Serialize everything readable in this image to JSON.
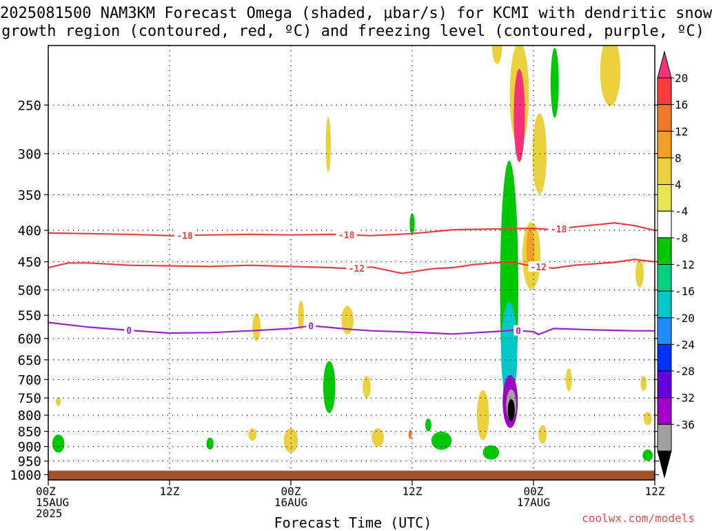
{
  "title_line1": "2025081500 NAM3KM Forecast Omega (shaded, μbar/s) for KCMI with dendritic snow",
  "title_line2": "growth region (contoured, red, ºC) and freezing level (contoured, purple, ºC)",
  "credit": "coolwx.com/models",
  "chart_data": {
    "type": "heatmap",
    "title": "2025081500 NAM3KM Forecast Omega (shaded, μbar/s) for KCMI with dendritic snow growth region (contoured, red, ºC) and freezing level (contoured, purple, ºC)",
    "xlabel": "Forecast Time (UTC)",
    "ylabel": "",
    "x_ticks": [
      {
        "hour": 0,
        "lines": [
          "00Z",
          "15AUG",
          "2025"
        ]
      },
      {
        "hour": 12,
        "lines": [
          "12Z"
        ]
      },
      {
        "hour": 24,
        "lines": [
          "00Z",
          "16AUG"
        ]
      },
      {
        "hour": 36,
        "lines": [
          "12Z"
        ]
      },
      {
        "hour": 48,
        "lines": [
          "00Z",
          "17AUG"
        ]
      },
      {
        "hour": 60,
        "lines": [
          "12Z"
        ]
      }
    ],
    "xlim": [
      0,
      60
    ],
    "y_ticks": [
      250,
      300,
      350,
      400,
      450,
      500,
      550,
      600,
      650,
      700,
      750,
      800,
      850,
      900,
      950,
      1000
    ],
    "ylim_hPa": [
      1020,
      200
    ],
    "y_scale": "log-pressure",
    "grid": true,
    "ground_below_hPa": 985,
    "ground_color": "#a0522d",
    "colorbar": {
      "labels": [
        "20",
        "16",
        "12",
        "8",
        "4",
        "-4",
        "-8",
        "-12",
        "-16",
        "-20",
        "-24",
        "-28",
        "-32",
        "-36"
      ],
      "colors": [
        "#f4317a",
        "#ff3c3c",
        "#f07826",
        "#f0a028",
        "#ebd23c",
        "#e6e650",
        "#ffffff",
        "#00c800",
        "#00d282",
        "#00c8c8",
        "#1e8cff",
        "#0032ff",
        "#6400dc",
        "#a000c8",
        "#a0a0a0",
        "#000000"
      ]
    },
    "contours": [
      {
        "color": "#e83e3e",
        "level": "-18",
        "points": [
          [
            0,
            404
          ],
          [
            4,
            405
          ],
          [
            8,
            406
          ],
          [
            12,
            408
          ],
          [
            16,
            407
          ],
          [
            20,
            406
          ],
          [
            24,
            407
          ],
          [
            28,
            406
          ],
          [
            32,
            408
          ],
          [
            36,
            405
          ],
          [
            38,
            402
          ],
          [
            40,
            399
          ],
          [
            44,
            398
          ],
          [
            48,
            397
          ],
          [
            50,
            399
          ],
          [
            52,
            395
          ],
          [
            56,
            389
          ],
          [
            58,
            393
          ],
          [
            60,
            400
          ]
        ],
        "labels": [
          {
            "x": 13.5,
            "text": "-18"
          },
          {
            "x": 29.5,
            "text": "-18"
          },
          {
            "x": 50.5,
            "text": "-18"
          }
        ]
      },
      {
        "color": "#e83e3e",
        "level": "-12",
        "points": [
          [
            0,
            460
          ],
          [
            2,
            452
          ],
          [
            4,
            452
          ],
          [
            8,
            456
          ],
          [
            12,
            457
          ],
          [
            16,
            458
          ],
          [
            20,
            456
          ],
          [
            24,
            458
          ],
          [
            28,
            460
          ],
          [
            30,
            462
          ],
          [
            32,
            459
          ],
          [
            35,
            470
          ],
          [
            38,
            462
          ],
          [
            40,
            460
          ],
          [
            42,
            455
          ],
          [
            44,
            452
          ],
          [
            46,
            451
          ],
          [
            48,
            458
          ],
          [
            50,
            461
          ],
          [
            52,
            456
          ],
          [
            56,
            451
          ],
          [
            58,
            446
          ],
          [
            60,
            450
          ]
        ],
        "labels": [
          {
            "x": 30.5,
            "text": "-12"
          },
          {
            "x": 48.5,
            "text": "-12"
          }
        ]
      },
      {
        "color": "#9a20c8",
        "level": "0",
        "points": [
          [
            0,
            565
          ],
          [
            4,
            575
          ],
          [
            8,
            582
          ],
          [
            12,
            588
          ],
          [
            16,
            587
          ],
          [
            20,
            583
          ],
          [
            24,
            578
          ],
          [
            26,
            572
          ],
          [
            28,
            576
          ],
          [
            30,
            580
          ],
          [
            32,
            583
          ],
          [
            36,
            586
          ],
          [
            40,
            590
          ],
          [
            44,
            585
          ],
          [
            46,
            582
          ],
          [
            48,
            585
          ],
          [
            48.5,
            591
          ],
          [
            50,
            578
          ],
          [
            54,
            581
          ],
          [
            58,
            583
          ],
          [
            60,
            583
          ]
        ],
        "labels": [
          {
            "x": 8,
            "text": "0"
          },
          {
            "x": 26,
            "text": "0"
          },
          {
            "x": 46.5,
            "text": "0"
          }
        ]
      }
    ],
    "shaded_regions": [
      {
        "hour": 46.6,
        "p": 240,
        "hw": 0.95,
        "hh": 110,
        "color": "#ebd23c"
      },
      {
        "hour": 46.6,
        "p": 260,
        "hw": 0.55,
        "hh": 90,
        "color": "#f4317a"
      },
      {
        "hour": 45.6,
        "p": 500,
        "hw": 0.9,
        "hh": 450,
        "color": "#00c800"
      },
      {
        "hour": 45.6,
        "p": 630,
        "hw": 0.8,
        "hh": 230,
        "color": "#00c8c8"
      },
      {
        "hour": 45.7,
        "p": 760,
        "hw": 0.75,
        "hh": 150,
        "color": "#a000c8"
      },
      {
        "hour": 45.8,
        "p": 770,
        "hw": 0.5,
        "hh": 90,
        "color": "#a0a0a0"
      },
      {
        "hour": 45.8,
        "p": 785,
        "hw": 0.35,
        "hh": 65,
        "color": "#000000"
      },
      {
        "hour": 47.8,
        "p": 440,
        "hw": 0.9,
        "hh": 110,
        "color": "#ebd23c"
      },
      {
        "hour": 47.7,
        "p": 430,
        "hw": 0.4,
        "hh": 70,
        "color": "#f0a028"
      },
      {
        "hour": 48.6,
        "p": 300,
        "hw": 0.7,
        "hh": 90,
        "color": "#ebd23c"
      },
      {
        "hour": 50.1,
        "p": 230,
        "hw": 0.4,
        "hh": 60,
        "color": "#00c800"
      },
      {
        "hour": 55.6,
        "p": 220,
        "hw": 1.0,
        "hh": 80,
        "color": "#ebd23c"
      },
      {
        "hour": 27.8,
        "p": 720,
        "hw": 0.6,
        "hh": 140,
        "color": "#00c800"
      },
      {
        "hour": 29.6,
        "p": 560,
        "hw": 0.6,
        "hh": 60,
        "color": "#ebd23c"
      },
      {
        "hour": 20.6,
        "p": 575,
        "hw": 0.4,
        "hh": 60,
        "color": "#ebd23c"
      },
      {
        "hour": 25.0,
        "p": 550,
        "hw": 0.3,
        "hh": 60,
        "color": "#ebd23c"
      },
      {
        "hour": 24.0,
        "p": 880,
        "hw": 0.7,
        "hh": 80,
        "color": "#ebd23c"
      },
      {
        "hour": 20.2,
        "p": 860,
        "hw": 0.4,
        "hh": 40,
        "color": "#ebd23c"
      },
      {
        "hour": 16.0,
        "p": 890,
        "hw": 0.35,
        "hh": 40,
        "color": "#00c800"
      },
      {
        "hour": 1.0,
        "p": 890,
        "hw": 0.6,
        "hh": 60,
        "color": "#00c800"
      },
      {
        "hour": 1.0,
        "p": 760,
        "hw": 0.25,
        "hh": 25,
        "color": "#ebd23c"
      },
      {
        "hour": 32.6,
        "p": 870,
        "hw": 0.6,
        "hh": 60,
        "color": "#ebd23c"
      },
      {
        "hour": 31.5,
        "p": 720,
        "hw": 0.4,
        "hh": 60,
        "color": "#ebd23c"
      },
      {
        "hour": 38.9,
        "p": 880,
        "hw": 1.0,
        "hh": 60,
        "color": "#00c800"
      },
      {
        "hour": 43.8,
        "p": 920,
        "hw": 0.8,
        "hh": 50,
        "color": "#00c800"
      },
      {
        "hour": 43.0,
        "p": 800,
        "hw": 0.6,
        "hh": 150,
        "color": "#ebd23c"
      },
      {
        "hour": 44.4,
        "p": 200,
        "hw": 0.5,
        "hh": 60,
        "color": "#ebd23c"
      },
      {
        "hour": 51.5,
        "p": 700,
        "hw": 0.3,
        "hh": 60,
        "color": "#ebd23c"
      },
      {
        "hour": 48.9,
        "p": 860,
        "hw": 0.4,
        "hh": 60,
        "color": "#ebd23c"
      },
      {
        "hour": 37.6,
        "p": 830,
        "hw": 0.3,
        "hh": 40,
        "color": "#00c800"
      },
      {
        "hour": 36.0,
        "p": 390,
        "hw": 0.25,
        "hh": 30,
        "color": "#00c800"
      },
      {
        "hour": 58.5,
        "p": 470,
        "hw": 0.4,
        "hh": 50,
        "color": "#ebd23c"
      },
      {
        "hour": 59.3,
        "p": 810,
        "hw": 0.4,
        "hh": 40,
        "color": "#ebd23c"
      },
      {
        "hour": 59.3,
        "p": 930,
        "hw": 0.5,
        "hh": 40,
        "color": "#00c800"
      },
      {
        "hour": 35.8,
        "p": 860,
        "hw": 0.15,
        "hh": 30,
        "color": "#f07826"
      },
      {
        "hour": 27.7,
        "p": 290,
        "hw": 0.25,
        "hh": 60,
        "color": "#ebd23c"
      },
      {
        "hour": 58.9,
        "p": 710,
        "hw": 0.3,
        "hh": 40,
        "color": "#ebd23c"
      }
    ]
  }
}
